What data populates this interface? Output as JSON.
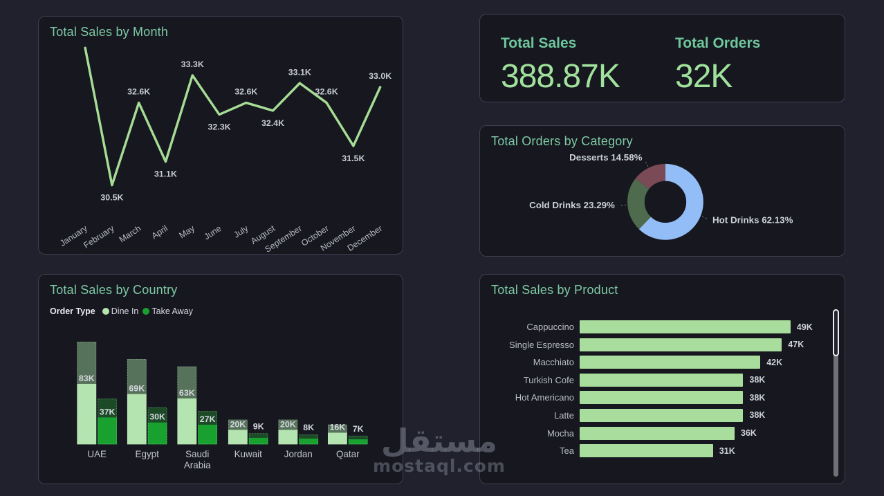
{
  "watermark": {
    "arabic": "مستقل",
    "domain": "mostaql.com"
  },
  "colors": {
    "page_bg": "#20212c",
    "card_bg": "#16171f",
    "card_border": "#3e3f50",
    "card_title": "#7ecaa4",
    "kpi_label": "#6fc89d",
    "kpi_value": "#a0e19b",
    "line": "#a6dc95",
    "data_label": "#c7cbd3",
    "axis_label": "#b7bbc5",
    "donut_hot_drinks": "#92bdf6",
    "donut_cold_drinks": "#4e6b4e",
    "donut_desserts": "#7a4a57",
    "dine_in": "#b4e4af",
    "dine_in_muted": "#57725b",
    "take_away": "#18a12f",
    "take_away_muted": "#1c4a27",
    "product_bar": "#a9dd9d",
    "scroll_track": "#70707a",
    "scroll_thumb_border": "#edeff3"
  },
  "chart_data": [
    {
      "type": "line",
      "title": "Total Sales by Month",
      "categories": [
        "January",
        "February",
        "March",
        "April",
        "May",
        "June",
        "July",
        "August",
        "September",
        "October",
        "November",
        "December"
      ],
      "values": [
        34.0,
        30.5,
        32.6,
        31.1,
        33.3,
        32.3,
        32.6,
        32.4,
        33.1,
        32.6,
        31.5,
        33.0
      ],
      "labels": [
        "",
        "30.5K",
        "32.6K",
        "31.1K",
        "33.3K",
        "32.3K",
        "32.6K",
        "32.4K",
        "33.1K",
        "32.6K",
        "31.5K",
        "33.0K"
      ],
      "unit": "K",
      "ylim": [
        30.5,
        34.0
      ],
      "grid": false,
      "axis_lines": "hidden",
      "line_color": "#a6dc95"
    },
    {
      "type": "kpi",
      "items": [
        {
          "label": "Total Sales",
          "value": "388.87K"
        },
        {
          "label": "Total Orders",
          "value": "32K"
        }
      ]
    },
    {
      "type": "pie",
      "subtype": "donut",
      "title": "Total Orders by Category",
      "slices": [
        {
          "label": "Hot Drinks",
          "pct": 62.13,
          "color": "#92bdf6"
        },
        {
          "label": "Cold Drinks",
          "pct": 23.29,
          "color": "#4e6b4e"
        },
        {
          "label": "Desserts",
          "pct": 14.58,
          "color": "#7a4a57"
        }
      ],
      "legend_position": "callout-labels"
    },
    {
      "type": "bar",
      "orientation": "vertical",
      "title": "Total Sales by Country",
      "legend_title": "Order Type",
      "categories": [
        "UAE",
        "Egypt",
        "Saudi Arabia",
        "Kuwait",
        "Jordan",
        "Qatar"
      ],
      "series": [
        {
          "name": "Dine In",
          "color": "#b4e4af",
          "muted_color": "#57725b",
          "values": [
            83,
            69,
            63,
            20,
            20,
            16
          ],
          "labels": [
            "83K",
            "69K",
            "63K",
            "20K",
            "20K",
            "16K"
          ]
        },
        {
          "name": "Take Away",
          "color": "#18a12f",
          "muted_color": "#1c4a27",
          "values": [
            37,
            30,
            27,
            9,
            8,
            7
          ],
          "labels": [
            "37K",
            "30K",
            "27K",
            "9K",
            "8K",
            "7K"
          ]
        }
      ],
      "unit": "K",
      "grid": false
    },
    {
      "type": "bar",
      "orientation": "horizontal",
      "title": "Total Sales by Product",
      "categories": [
        "Cappuccino",
        "Single Espresso",
        "Macchiato",
        "Turkish Cofe",
        "Hot Americano",
        "Latte",
        "Mocha",
        "Tea"
      ],
      "values": [
        49,
        47,
        42,
        38,
        38,
        38,
        36,
        31
      ],
      "labels": [
        "49K",
        "47K",
        "42K",
        "38K",
        "38K",
        "38K",
        "36K",
        "31K"
      ],
      "unit": "K",
      "bar_color": "#a9dd9d",
      "xlim": [
        0,
        49
      ]
    }
  ]
}
